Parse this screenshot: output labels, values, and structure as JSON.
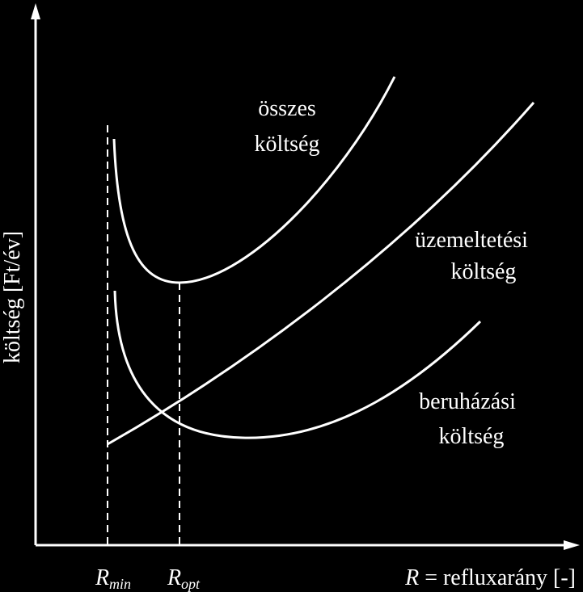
{
  "y_axis": {
    "label": "költség [Ft/év]"
  },
  "x_axis": {
    "symbol": "R",
    "label": " = refluxarány [-]"
  },
  "markers": [
    {
      "symbol": "R",
      "subscript": "min"
    },
    {
      "symbol": "R",
      "subscript": "opt"
    }
  ],
  "curves": [
    {
      "label": [
        "összes",
        "költség"
      ]
    },
    {
      "label": [
        "üzemeltetési",
        "költség"
      ]
    },
    {
      "label": [
        "beruházási",
        "költség"
      ]
    }
  ]
}
